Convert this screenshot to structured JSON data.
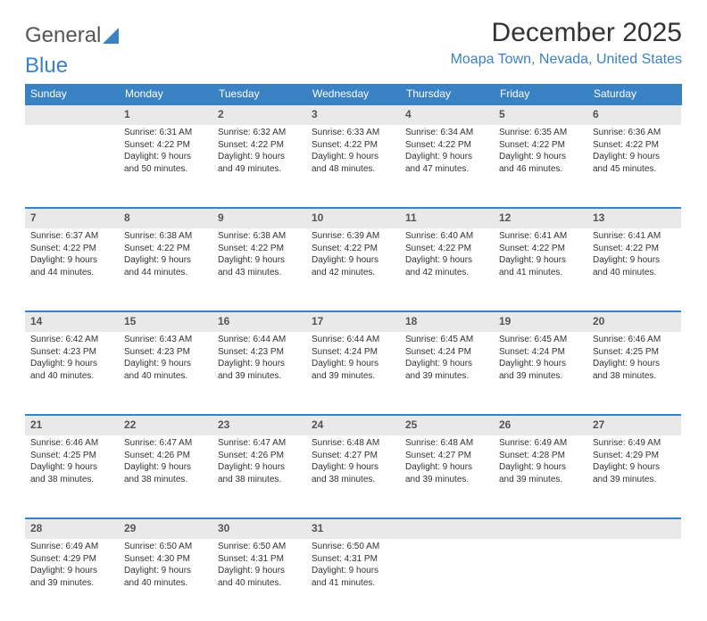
{
  "logo": {
    "text1": "General",
    "text2": "Blue"
  },
  "title": "December 2025",
  "location": "Moapa Town, Nevada, United States",
  "colors": {
    "accent": "#3b82c4",
    "header_bg": "#3b82c4",
    "daynum_bg": "#e9e9e9",
    "border": "#3b82c4",
    "text": "#333333",
    "background": "#ffffff"
  },
  "day_names": [
    "Sunday",
    "Monday",
    "Tuesday",
    "Wednesday",
    "Thursday",
    "Friday",
    "Saturday"
  ],
  "weeks": [
    [
      null,
      {
        "n": "1",
        "sr": "6:31 AM",
        "ss": "4:22 PM",
        "dl": "9 hours and 50 minutes."
      },
      {
        "n": "2",
        "sr": "6:32 AM",
        "ss": "4:22 PM",
        "dl": "9 hours and 49 minutes."
      },
      {
        "n": "3",
        "sr": "6:33 AM",
        "ss": "4:22 PM",
        "dl": "9 hours and 48 minutes."
      },
      {
        "n": "4",
        "sr": "6:34 AM",
        "ss": "4:22 PM",
        "dl": "9 hours and 47 minutes."
      },
      {
        "n": "5",
        "sr": "6:35 AM",
        "ss": "4:22 PM",
        "dl": "9 hours and 46 minutes."
      },
      {
        "n": "6",
        "sr": "6:36 AM",
        "ss": "4:22 PM",
        "dl": "9 hours and 45 minutes."
      }
    ],
    [
      {
        "n": "7",
        "sr": "6:37 AM",
        "ss": "4:22 PM",
        "dl": "9 hours and 44 minutes."
      },
      {
        "n": "8",
        "sr": "6:38 AM",
        "ss": "4:22 PM",
        "dl": "9 hours and 44 minutes."
      },
      {
        "n": "9",
        "sr": "6:38 AM",
        "ss": "4:22 PM",
        "dl": "9 hours and 43 minutes."
      },
      {
        "n": "10",
        "sr": "6:39 AM",
        "ss": "4:22 PM",
        "dl": "9 hours and 42 minutes."
      },
      {
        "n": "11",
        "sr": "6:40 AM",
        "ss": "4:22 PM",
        "dl": "9 hours and 42 minutes."
      },
      {
        "n": "12",
        "sr": "6:41 AM",
        "ss": "4:22 PM",
        "dl": "9 hours and 41 minutes."
      },
      {
        "n": "13",
        "sr": "6:41 AM",
        "ss": "4:22 PM",
        "dl": "9 hours and 40 minutes."
      }
    ],
    [
      {
        "n": "14",
        "sr": "6:42 AM",
        "ss": "4:23 PM",
        "dl": "9 hours and 40 minutes."
      },
      {
        "n": "15",
        "sr": "6:43 AM",
        "ss": "4:23 PM",
        "dl": "9 hours and 40 minutes."
      },
      {
        "n": "16",
        "sr": "6:44 AM",
        "ss": "4:23 PM",
        "dl": "9 hours and 39 minutes."
      },
      {
        "n": "17",
        "sr": "6:44 AM",
        "ss": "4:24 PM",
        "dl": "9 hours and 39 minutes."
      },
      {
        "n": "18",
        "sr": "6:45 AM",
        "ss": "4:24 PM",
        "dl": "9 hours and 39 minutes."
      },
      {
        "n": "19",
        "sr": "6:45 AM",
        "ss": "4:24 PM",
        "dl": "9 hours and 39 minutes."
      },
      {
        "n": "20",
        "sr": "6:46 AM",
        "ss": "4:25 PM",
        "dl": "9 hours and 38 minutes."
      }
    ],
    [
      {
        "n": "21",
        "sr": "6:46 AM",
        "ss": "4:25 PM",
        "dl": "9 hours and 38 minutes."
      },
      {
        "n": "22",
        "sr": "6:47 AM",
        "ss": "4:26 PM",
        "dl": "9 hours and 38 minutes."
      },
      {
        "n": "23",
        "sr": "6:47 AM",
        "ss": "4:26 PM",
        "dl": "9 hours and 38 minutes."
      },
      {
        "n": "24",
        "sr": "6:48 AM",
        "ss": "4:27 PM",
        "dl": "9 hours and 38 minutes."
      },
      {
        "n": "25",
        "sr": "6:48 AM",
        "ss": "4:27 PM",
        "dl": "9 hours and 39 minutes."
      },
      {
        "n": "26",
        "sr": "6:49 AM",
        "ss": "4:28 PM",
        "dl": "9 hours and 39 minutes."
      },
      {
        "n": "27",
        "sr": "6:49 AM",
        "ss": "4:29 PM",
        "dl": "9 hours and 39 minutes."
      }
    ],
    [
      {
        "n": "28",
        "sr": "6:49 AM",
        "ss": "4:29 PM",
        "dl": "9 hours and 39 minutes."
      },
      {
        "n": "29",
        "sr": "6:50 AM",
        "ss": "4:30 PM",
        "dl": "9 hours and 40 minutes."
      },
      {
        "n": "30",
        "sr": "6:50 AM",
        "ss": "4:31 PM",
        "dl": "9 hours and 40 minutes."
      },
      {
        "n": "31",
        "sr": "6:50 AM",
        "ss": "4:31 PM",
        "dl": "9 hours and 41 minutes."
      },
      null,
      null,
      null
    ]
  ],
  "labels": {
    "sunrise": "Sunrise:",
    "sunset": "Sunset:",
    "daylight": "Daylight:"
  }
}
